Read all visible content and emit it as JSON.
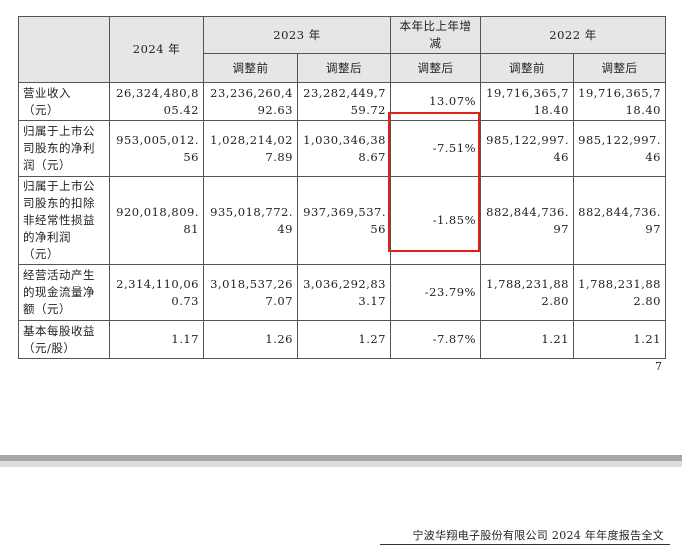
{
  "table": {
    "header": {
      "y2024": "2024 年",
      "y2023": "2023 年",
      "change": "本年比上年增\n减",
      "y2022": "2022 年",
      "before": "调整前",
      "after": "调整后",
      "change_after": "调整后",
      "before_2022": "调整前",
      "after_2022": "调整后"
    },
    "rows": [
      {
        "label": "营业收入\n（元）",
        "v2024": "26,324,480,8\n05.42",
        "v2023_before": "23,236,260,4\n92.63",
        "v2023_after": "23,282,449,7\n59.72",
        "change": "13.07%",
        "v2022_before": "19,716,365,7\n18.40",
        "v2022_after": "19,716,365,7\n18.40"
      },
      {
        "label": "归属于上市公\n司股东的净利\n润（元）",
        "v2024": "953,005,012.\n56",
        "v2023_before": "1,028,214,02\n7.89",
        "v2023_after": "1,030,346,38\n8.67",
        "change": "-7.51%",
        "v2022_before": "985,122,997.\n46",
        "v2022_after": "985,122,997.\n46"
      },
      {
        "label": "归属于上市公\n司股东的扣除\n非经常性损益\n的净利润\n（元）",
        "v2024": "920,018,809.\n81",
        "v2023_before": "935,018,772.\n49",
        "v2023_after": "937,369,537.\n56",
        "change": "-1.85%",
        "v2022_before": "882,844,736.\n97",
        "v2022_after": "882,844,736.\n97"
      },
      {
        "label": "经营活动产生\n的现金流量净\n额（元）",
        "v2024": "2,314,110,06\n0.73",
        "v2023_before": "3,018,537,26\n7.07",
        "v2023_after": "3,036,292,83\n3.17",
        "change": "-23.79%",
        "v2022_before": "1,788,231,88\n2.80",
        "v2022_after": "1,788,231,88\n2.80"
      },
      {
        "label": "基本每股收益\n（元/股）",
        "v2024": "1.17",
        "v2023_before": "1.26",
        "v2023_after": "1.27",
        "change": "-7.87%",
        "v2022_before": "1.21",
        "v2022_after": "1.21"
      }
    ]
  },
  "page_number": "7",
  "footer": "宁波华翔电子股份有限公司 2024 年年度报告全文",
  "colors": {
    "highlight": "#e0201a",
    "header_bg": "#e6e6e6"
  }
}
